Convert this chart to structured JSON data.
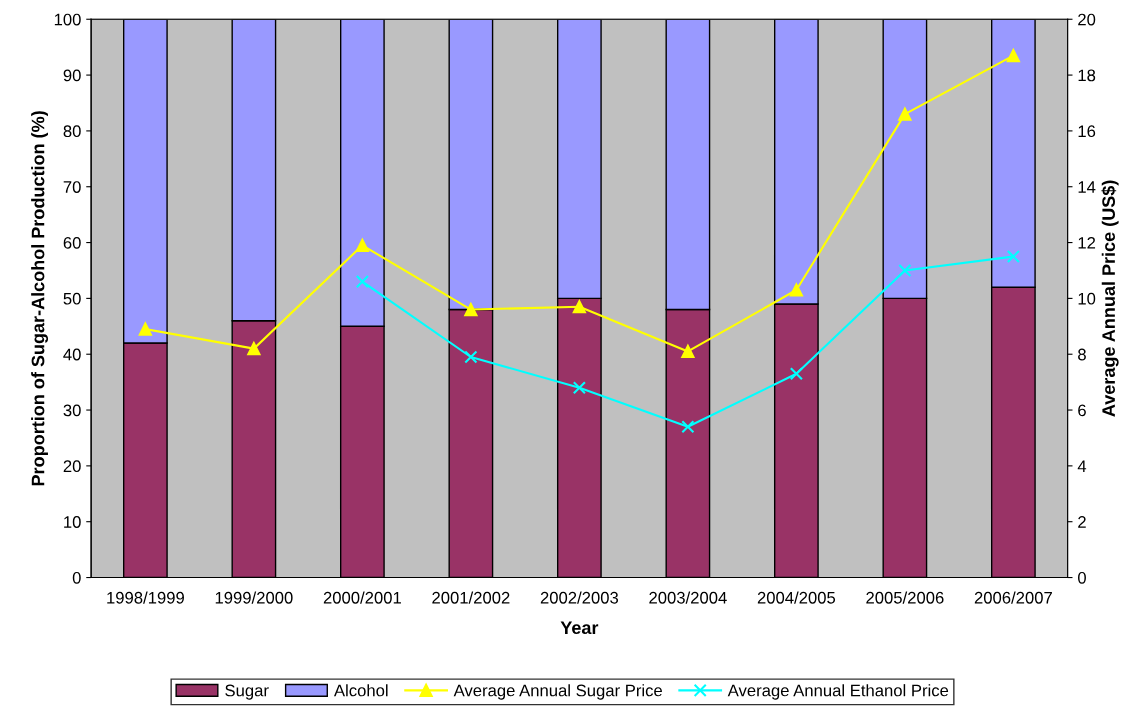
{
  "chart_data": {
    "type": "bar",
    "stacked": true,
    "xlabel": "Year",
    "ylabel": "Proportion of Sugar-Alcohol Production (%)",
    "y2label": "Average Annual Price (US$)",
    "categories": [
      "1998/1999",
      "1999/2000",
      "2000/2001",
      "2001/2002",
      "2002/2003",
      "2003/2004",
      "2004/2005",
      "2005/2006",
      "2006/2007"
    ],
    "series": [
      {
        "name": "Sugar",
        "color": "#993366",
        "values": [
          42,
          46,
          45,
          48,
          50,
          48,
          49,
          50,
          52
        ]
      },
      {
        "name": "Alcohol",
        "color": "#9999ff",
        "values": [
          58,
          54,
          55,
          52,
          50,
          52,
          51,
          50,
          48
        ]
      },
      {
        "name": "Average Annual Sugar Price",
        "type": "line",
        "axis": "y2",
        "marker": "triangle",
        "color": "#ffff00",
        "values": [
          8.9,
          8.2,
          11.9,
          9.6,
          9.7,
          8.1,
          10.3,
          16.6,
          18.7
        ]
      },
      {
        "name": "Average Annual Ethanol Price",
        "type": "line",
        "axis": "y2",
        "marker": "cross",
        "color": "#00ffff",
        "values": [
          null,
          null,
          10.6,
          7.9,
          6.8,
          5.4,
          7.3,
          11.0,
          11.5
        ]
      }
    ],
    "ylim": [
      0,
      100
    ],
    "yticks": [
      0,
      10,
      20,
      30,
      40,
      50,
      60,
      70,
      80,
      90,
      100
    ],
    "y2lim": [
      0,
      20
    ],
    "y2ticks": [
      0,
      2,
      4,
      6,
      8,
      10,
      12,
      14,
      16,
      18,
      20
    ],
    "grid": false,
    "legend": "bottom"
  }
}
